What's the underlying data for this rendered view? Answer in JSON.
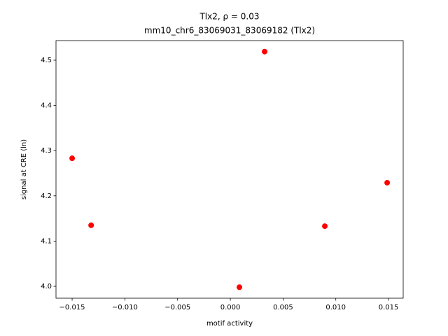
{
  "chart_data": {
    "type": "scatter",
    "title": "Tlx2, ρ = 0.03",
    "subtitle": "mm10_chr6_83069031_83069182 (Tlx2)",
    "x_label": "motif activity",
    "y_label": "signal at CRE (ln)",
    "color": "#ff0000",
    "x": [
      -0.015,
      -0.0132,
      0.00086,
      0.00325,
      0.00896,
      0.01487
    ],
    "values": [
      4.283,
      4.135,
      3.998,
      4.519,
      4.133,
      4.229
    ],
    "xlim": [
      -0.01653,
      0.01639
    ],
    "ylim": [
      3.9737,
      4.5433
    ],
    "xticks": [
      {
        "value": -0.015,
        "label": "−0.015"
      },
      {
        "value": -0.01,
        "label": "−0.010"
      },
      {
        "value": -0.005,
        "label": "−0.005"
      },
      {
        "value": 0,
        "label": "0.000"
      },
      0.005,
      {
        "value": 0.01,
        "label": "0.010"
      },
      0.015
    ],
    "yticks": [
      {
        "value": 4,
        "label": "4.0"
      },
      4.1,
      4.2,
      4.3,
      4.4,
      4.5
    ]
  }
}
